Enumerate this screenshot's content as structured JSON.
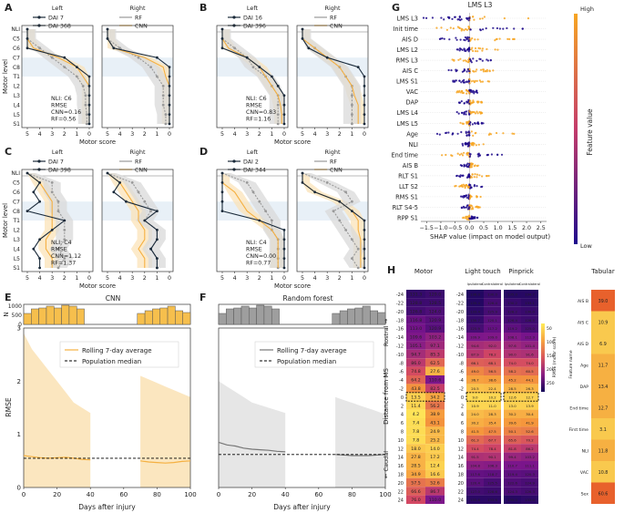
{
  "panels": {
    "A": {
      "label": "A",
      "side_left": "Left",
      "side_right": "Right",
      "legend": [
        "DAI 7",
        "DAI 368",
        "RF",
        "CNN"
      ],
      "stats": [
        "NLI: C6",
        "RMSE",
        "CNN=0.16",
        "RF=0.56"
      ],
      "xlabel": "Motor score",
      "ylabel": "Motor level"
    },
    "B": {
      "label": "B",
      "side_left": "Left",
      "side_right": "Right",
      "legend": [
        "DAI 16",
        "DAI 396",
        "RF",
        "CNN"
      ],
      "stats": [
        "NLI: C6",
        "RMSE",
        "CNN=0.83",
        "RF=1.16"
      ],
      "xlabel": "Motor score"
    },
    "C": {
      "label": "C",
      "side_left": "Left",
      "side_right": "Right",
      "legend": [
        "DAI 7",
        "DAI 398",
        "RF",
        "CNN"
      ],
      "stats": [
        "NLI: C4",
        "RMSE",
        "CNN=1.12",
        "RF=1.37"
      ],
      "xlabel": "Motor score",
      "ylabel": "Motor level"
    },
    "D": {
      "label": "D",
      "side_left": "Left",
      "side_right": "Right",
      "legend": [
        "DAI 2",
        "DAI 344",
        "RF",
        "CNN"
      ],
      "stats": [
        "NLI: C4",
        "RMSE",
        "CNN=0.00",
        "RF=0.77"
      ],
      "xlabel": "Motor score"
    },
    "E": {
      "label": "E",
      "title": "CNN",
      "legend": [
        "Rolling 7-day average",
        "Population median"
      ],
      "xlabel": "Days after injury",
      "ylabel": "RMSE",
      "ylabel_n": "N"
    },
    "F": {
      "label": "F",
      "title": "Random forest",
      "legend": [
        "Rolling 7-day average",
        "Population median"
      ],
      "xlabel": "Days after injury"
    },
    "G": {
      "label": "G",
      "title": "LMS L3",
      "xlabel": "SHAP value (impact on model output)",
      "colorbar_label": "Feature value",
      "colorbar_high": "High",
      "colorbar_low": "Low"
    },
    "H": {
      "label": "H",
      "groups": [
        "Motor",
        "Light touch",
        "Pinprick"
      ],
      "sub": [
        "Ipsilateral",
        "Contralateral"
      ],
      "ylabel": "Distance from MS",
      "rostral": "Rostral →",
      "caudal": "← Caudal",
      "colorbar_label": "RMSE (motor score)",
      "tabular_title": "Tabular",
      "feature_name_label": "Feature name"
    }
  },
  "motor_levels": [
    "NLI",
    "C5",
    "C6",
    "C7",
    "C8",
    "T1",
    "L2",
    "L3",
    "L4",
    "L5",
    "S1"
  ],
  "score_ticks": [
    "5",
    "4",
    "3",
    "2",
    "1",
    "0"
  ],
  "colors": {
    "black": "#1a2a3a",
    "rf": "#999999",
    "cnn": "#f5b041",
    "cnn_fill": "#fbe3b8",
    "rf_fill": "#d9d9d9",
    "shade": "#e8f0f7",
    "bar_cnn": "#f6bf4d",
    "bar_rf": "#9e9e9e",
    "low": "#1e0a8c",
    "high": "#f7a623"
  },
  "chart_data": [
    {
      "id": "E",
      "type": "line",
      "title": "CNN",
      "xlabel": "Days after injury",
      "ylabel": "RMSE",
      "xlim": [
        0,
        100
      ],
      "ylim": [
        0,
        3
      ],
      "xticks": [
        0,
        20,
        40,
        60,
        80,
        100
      ],
      "yticks": [
        0,
        1,
        2,
        3
      ],
      "population_median": 0.55,
      "hist_counts": [
        600,
        850,
        900,
        1000,
        900,
        1050,
        1000,
        850,
        0,
        0,
        0,
        0,
        0,
        0,
        0,
        600,
        750,
        850,
        900,
        1000,
        750,
        650
      ],
      "hist_yticks": [
        0,
        500,
        1000
      ],
      "rolling_x": [
        0,
        5,
        10,
        15,
        20,
        25,
        30,
        35,
        40,
        70,
        75,
        80,
        85,
        90,
        95,
        100
      ],
      "rolling_y": [
        0.6,
        0.58,
        0.56,
        0.55,
        0.56,
        0.57,
        0.55,
        0.53,
        0.52,
        0.5,
        0.48,
        0.47,
        0.46,
        0.47,
        0.49,
        0.5
      ]
    },
    {
      "id": "F",
      "type": "line",
      "title": "Random forest",
      "xlabel": "Days after injury",
      "xlim": [
        0,
        100
      ],
      "ylim": [
        0,
        3
      ],
      "xticks": [
        0,
        20,
        40,
        60,
        80,
        100
      ],
      "population_median": 0.62,
      "hist_counts": [
        600,
        850,
        900,
        1000,
        900,
        1050,
        1000,
        850,
        0,
        0,
        0,
        0,
        0,
        0,
        0,
        600,
        750,
        850,
        900,
        1000,
        750,
        650
      ],
      "hist_yticks": [
        0,
        500,
        1000
      ],
      "rolling_x": [
        0,
        5,
        10,
        15,
        20,
        25,
        30,
        35,
        40,
        70,
        75,
        80,
        85,
        90,
        95,
        100
      ],
      "rolling_y": [
        0.85,
        0.8,
        0.78,
        0.74,
        0.72,
        0.71,
        0.7,
        0.68,
        0.67,
        0.62,
        0.61,
        0.6,
        0.6,
        0.6,
        0.61,
        0.62
      ]
    },
    {
      "id": "G",
      "type": "scatter",
      "title": "LMS L3",
      "xlabel": "SHAP value (impact on model output)",
      "xlim": [
        -1.7,
        2.7
      ],
      "xticks": [
        -1.5,
        -1.0,
        -0.5,
        0.0,
        0.5,
        1.0,
        1.5,
        2.0,
        2.5
      ],
      "features": [
        "LMS L3",
        "Init time",
        "AIS D",
        "LMS L2",
        "RMS L3",
        "AIS C",
        "LMS S1",
        "VAC",
        "DAP",
        "LMS L4",
        "LMS L5",
        "Age",
        "NLI",
        "End time",
        "AIS B",
        "RLT S1",
        "LLT S2",
        "RMS S1",
        "RLT S4-5",
        "RPP S1"
      ],
      "spread": [
        2.2,
        1.9,
        1.7,
        1.0,
        0.8,
        1.0,
        0.8,
        0.6,
        0.5,
        0.6,
        0.5,
        1.6,
        0.5,
        1.3,
        0.4,
        0.7,
        0.7,
        0.4,
        0.4,
        0.3
      ]
    },
    {
      "id": "H",
      "type": "heatmap",
      "rows": [
        "-24",
        "-22",
        "-20",
        "-18",
        "-16",
        "-14",
        "-12",
        "-10",
        "-8",
        "-6",
        "-4",
        "-2",
        "0",
        "2",
        "4",
        "6",
        "8",
        "10",
        "12",
        "14",
        "16",
        "18",
        "20",
        "22",
        "24"
      ],
      "motor_ipsi": [
        131.3,
        128.8,
        126.8,
        116.8,
        113.0,
        109.6,
        105.1,
        94.7,
        86.0,
        74.8,
        64.2,
        43.8,
        13.5,
        11.4,
        4.2,
        7.4,
        7.8,
        7.8,
        18.0,
        27.8,
        28.5,
        34.9,
        57.5,
        66.6,
        76.0
      ],
      "motor_contra": [
        129.0,
        128.5,
        124.0,
        120.9,
        120.9,
        103.2,
        97.1,
        85.3,
        62.5,
        27.6,
        110.6,
        82.5,
        34.2,
        56.2,
        38.9,
        43.1,
        24.9,
        25.2,
        14.0,
        17.2,
        12.4,
        16.6,
        52.6,
        86.7,
        110.0
      ],
      "lt_ipsi": [
        136.0,
        135.4,
        133.4,
        130.7,
        125.9,
        109.9,
        94.6,
        87.9,
        66.1,
        49.0,
        36.7,
        20.5,
        9.0,
        10.9,
        24.0,
        30.2,
        41.5,
        61.3,
        74.4,
        91.5,
        104.8,
        117.6,
        120.4,
        127.0,
        133.8
      ],
      "lt_contra": [
        130.0,
        126.4,
        125.9,
        120.1,
        117.2,
        109.0,
        92.0,
        78.2,
        68.1,
        56.5,
        38.6,
        22.4,
        10.2,
        11.0,
        28.3,
        35.4,
        47.5,
        67.7,
        78.4,
        90.1,
        106.3,
        118.7,
        125.5,
        128.6,
        133.6
      ],
      "pp_ipsi": [
        135.0,
        130.2,
        128.2,
        126.4,
        119.2,
        108.1,
        97.6,
        90.0,
        74.0,
        58.2,
        45.2,
        28.5,
        12.6,
        13.0,
        30.2,
        39.6,
        50.1,
        65.6,
        81.8,
        99.4,
        110.7,
        119.4,
        122.6,
        124.3,
        135.0
      ],
      "pp_contra": [
        134.7,
        133.1,
        130.0,
        128.5,
        125.0,
        112.3,
        101.4,
        91.6,
        74.0,
        60.5,
        44.1,
        26.3,
        12.7,
        13.9,
        30.4,
        41.9,
        52.6,
        70.2,
        86.2,
        103.2,
        111.1,
        120.3,
        124.9,
        126.3,
        133.0
      ],
      "colorbar_ticks": [
        50,
        100,
        150,
        200,
        250
      ],
      "tabular_features": [
        "AIS B",
        "AIS C",
        "AIS D",
        "Age",
        "DAP",
        "End time",
        "First time",
        "NLI",
        "VAC",
        "Sex"
      ],
      "tabular_values": [
        39.0,
        10.9,
        6.9,
        11.7,
        13.4,
        12.7,
        3.1,
        11.8,
        10.8,
        60.6
      ]
    }
  ]
}
